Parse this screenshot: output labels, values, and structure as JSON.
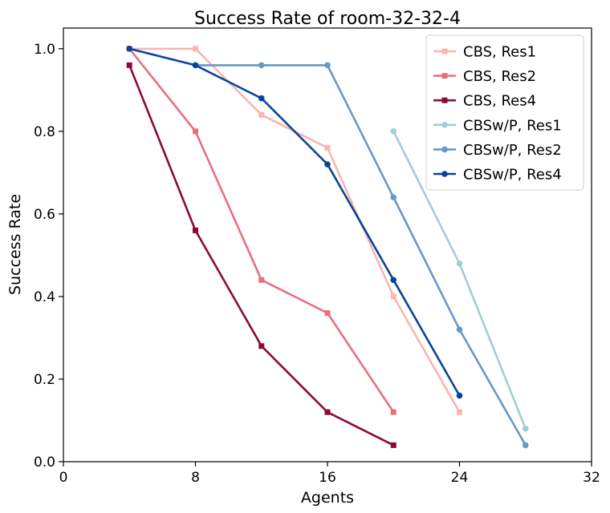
{
  "chart_data": {
    "type": "line",
    "title": "Success Rate of room-32-32-4",
    "xlabel": "Agents",
    "ylabel": "Success Rate",
    "xlim": [
      0,
      32
    ],
    "ylim": [
      0,
      1.05
    ],
    "xticks": [
      "0",
      "8",
      "16",
      "24",
      "32"
    ],
    "xtick_values": [
      0,
      8,
      16,
      24,
      32
    ],
    "yticks": [
      "0.0",
      "0.2",
      "0.4",
      "0.6",
      "0.8",
      "1.0"
    ],
    "ytick_values": [
      0,
      0.2,
      0.4,
      0.6,
      0.8,
      1.0
    ],
    "grid": false,
    "legend_position": "top-right",
    "series": [
      {
        "name": "CBS, Res1",
        "color": "#fbb4ae",
        "marker": "square",
        "x": [
          4,
          8,
          12,
          16,
          20,
          24
        ],
        "y": [
          1.0,
          1.0,
          0.84,
          0.76,
          0.4,
          0.12
        ]
      },
      {
        "name": "CBS, Res2",
        "color": "#e8707d",
        "marker": "square",
        "x": [
          4,
          8,
          12,
          16,
          20
        ],
        "y": [
          1.0,
          0.8,
          0.44,
          0.36,
          0.12
        ]
      },
      {
        "name": "CBS, Res4",
        "color": "#8b0a3c",
        "marker": "square",
        "x": [
          4,
          8,
          12,
          16,
          20
        ],
        "y": [
          0.96,
          0.56,
          0.28,
          0.12,
          0.04
        ]
      },
      {
        "name": "CBSw/P, Res1",
        "color": "#9ecfd6",
        "marker": "circle",
        "x": [
          20,
          24,
          28
        ],
        "y": [
          0.8,
          0.48,
          0.08
        ]
      },
      {
        "name": "CBSw/P, Res2",
        "color": "#6699c4",
        "marker": "circle",
        "x": [
          8,
          12,
          16,
          20,
          24,
          28
        ],
        "y": [
          0.96,
          0.96,
          0.96,
          0.64,
          0.32,
          0.04
        ]
      },
      {
        "name": "CBSw/P, Res4",
        "color": "#08449a",
        "marker": "circle",
        "x": [
          4,
          8,
          12,
          16,
          20,
          24
        ],
        "y": [
          1.0,
          0.96,
          0.88,
          0.72,
          0.44,
          0.16
        ]
      }
    ]
  }
}
